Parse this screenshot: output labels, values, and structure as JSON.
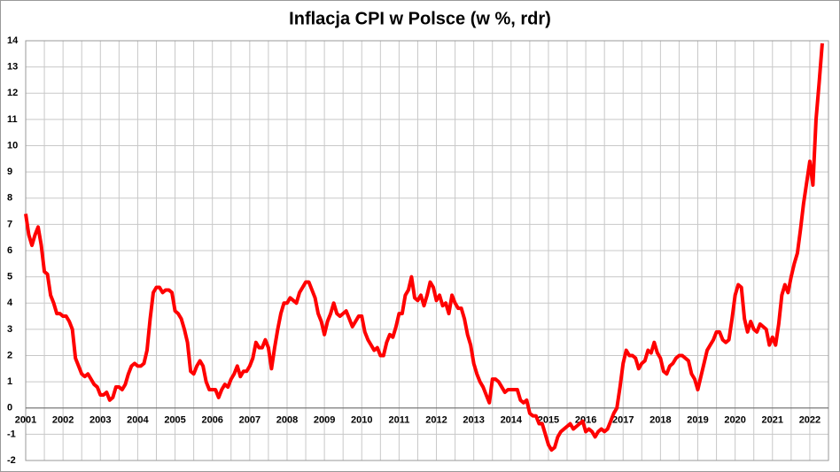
{
  "chart_data": {
    "type": "line",
    "title": "Inflacja CPI w Polsce (w %, rdr)",
    "x": [
      2001,
      2001.083,
      2001.167,
      2001.25,
      2001.333,
      2001.417,
      2001.5,
      2001.583,
      2001.667,
      2001.75,
      2001.833,
      2001.917,
      2002,
      2002.083,
      2002.167,
      2002.25,
      2002.333,
      2002.417,
      2002.5,
      2002.583,
      2002.667,
      2002.75,
      2002.833,
      2002.917,
      2003,
      2003.083,
      2003.167,
      2003.25,
      2003.333,
      2003.417,
      2003.5,
      2003.583,
      2003.667,
      2003.75,
      2003.833,
      2003.917,
      2004,
      2004.083,
      2004.167,
      2004.25,
      2004.333,
      2004.417,
      2004.5,
      2004.583,
      2004.667,
      2004.75,
      2004.833,
      2004.917,
      2005,
      2005.083,
      2005.167,
      2005.25,
      2005.333,
      2005.417,
      2005.5,
      2005.583,
      2005.667,
      2005.75,
      2005.833,
      2005.917,
      2006,
      2006.083,
      2006.167,
      2006.25,
      2006.333,
      2006.417,
      2006.5,
      2006.583,
      2006.667,
      2006.75,
      2006.833,
      2006.917,
      2007,
      2007.083,
      2007.167,
      2007.25,
      2007.333,
      2007.417,
      2007.5,
      2007.583,
      2007.667,
      2007.75,
      2007.833,
      2007.917,
      2008,
      2008.083,
      2008.167,
      2008.25,
      2008.333,
      2008.417,
      2008.5,
      2008.583,
      2008.667,
      2008.75,
      2008.833,
      2008.917,
      2009,
      2009.083,
      2009.167,
      2009.25,
      2009.333,
      2009.417,
      2009.5,
      2009.583,
      2009.667,
      2009.75,
      2009.833,
      2009.917,
      2010,
      2010.083,
      2010.167,
      2010.25,
      2010.333,
      2010.417,
      2010.5,
      2010.583,
      2010.667,
      2010.75,
      2010.833,
      2010.917,
      2011,
      2011.083,
      2011.167,
      2011.25,
      2011.333,
      2011.417,
      2011.5,
      2011.583,
      2011.667,
      2011.75,
      2011.833,
      2011.917,
      2012,
      2012.083,
      2012.167,
      2012.25,
      2012.333,
      2012.417,
      2012.5,
      2012.583,
      2012.667,
      2012.75,
      2012.833,
      2012.917,
      2013,
      2013.083,
      2013.167,
      2013.25,
      2013.333,
      2013.417,
      2013.5,
      2013.583,
      2013.667,
      2013.75,
      2013.833,
      2013.917,
      2014,
      2014.083,
      2014.167,
      2014.25,
      2014.333,
      2014.417,
      2014.5,
      2014.583,
      2014.667,
      2014.75,
      2014.833,
      2014.917,
      2015,
      2015.083,
      2015.167,
      2015.25,
      2015.333,
      2015.417,
      2015.5,
      2015.583,
      2015.667,
      2015.75,
      2015.833,
      2015.917,
      2016,
      2016.083,
      2016.167,
      2016.25,
      2016.333,
      2016.417,
      2016.5,
      2016.583,
      2016.667,
      2016.75,
      2016.833,
      2016.917,
      2017,
      2017.083,
      2017.167,
      2017.25,
      2017.333,
      2017.417,
      2017.5,
      2017.583,
      2017.667,
      2017.75,
      2017.833,
      2017.917,
      2018,
      2018.083,
      2018.167,
      2018.25,
      2018.333,
      2018.417,
      2018.5,
      2018.583,
      2018.667,
      2018.75,
      2018.833,
      2018.917,
      2019,
      2019.083,
      2019.167,
      2019.25,
      2019.333,
      2019.417,
      2019.5,
      2019.583,
      2019.667,
      2019.75,
      2019.833,
      2019.917,
      2020,
      2020.083,
      2020.167,
      2020.25,
      2020.333,
      2020.417,
      2020.5,
      2020.583,
      2020.667,
      2020.75,
      2020.833,
      2020.917,
      2021,
      2021.083,
      2021.167,
      2021.25,
      2021.333,
      2021.417,
      2021.5,
      2021.583,
      2021.667,
      2021.75,
      2021.833,
      2021.917,
      2022,
      2022.083,
      2022.167,
      2022.25,
      2022.333
    ],
    "series": [
      {
        "color": "#ff0000",
        "values": [
          7.4,
          6.6,
          6.2,
          6.6,
          6.9,
          6.2,
          5.2,
          5.1,
          4.3,
          4.0,
          3.6,
          3.6,
          3.5,
          3.5,
          3.3,
          3.0,
          1.9,
          1.6,
          1.3,
          1.2,
          1.3,
          1.1,
          0.9,
          0.8,
          0.5,
          0.5,
          0.6,
          0.3,
          0.4,
          0.8,
          0.8,
          0.7,
          0.9,
          1.3,
          1.6,
          1.7,
          1.6,
          1.6,
          1.7,
          2.2,
          3.4,
          4.4,
          4.6,
          4.6,
          4.4,
          4.5,
          4.5,
          4.4,
          3.7,
          3.6,
          3.4,
          3.0,
          2.5,
          1.4,
          1.3,
          1.6,
          1.8,
          1.6,
          1.0,
          0.7,
          0.7,
          0.7,
          0.4,
          0.7,
          0.9,
          0.8,
          1.1,
          1.3,
          1.6,
          1.2,
          1.4,
          1.4,
          1.6,
          1.9,
          2.5,
          2.3,
          2.3,
          2.6,
          2.3,
          1.5,
          2.3,
          3.0,
          3.6,
          4.0,
          4.0,
          4.2,
          4.1,
          4.0,
          4.4,
          4.6,
          4.8,
          4.8,
          4.5,
          4.2,
          3.6,
          3.3,
          2.8,
          3.3,
          3.6,
          4.0,
          3.6,
          3.5,
          3.6,
          3.7,
          3.4,
          3.1,
          3.3,
          3.5,
          3.5,
          2.9,
          2.6,
          2.4,
          2.2,
          2.3,
          2.0,
          2.0,
          2.5,
          2.8,
          2.7,
          3.1,
          3.6,
          3.6,
          4.3,
          4.5,
          5.0,
          4.2,
          4.1,
          4.3,
          3.9,
          4.3,
          4.8,
          4.6,
          4.1,
          4.3,
          3.9,
          4.0,
          3.6,
          4.3,
          4.0,
          3.8,
          3.8,
          3.4,
          2.8,
          2.4,
          1.7,
          1.3,
          1.0,
          0.8,
          0.5,
          0.2,
          1.1,
          1.1,
          1.0,
          0.8,
          0.6,
          0.7,
          0.7,
          0.7,
          0.7,
          0.3,
          0.2,
          0.3,
          -0.2,
          -0.3,
          -0.3,
          -0.6,
          -0.6,
          -1.0,
          -1.4,
          -1.6,
          -1.5,
          -1.1,
          -0.9,
          -0.8,
          -0.7,
          -0.6,
          -0.8,
          -0.7,
          -0.6,
          -0.5,
          -0.9,
          -0.8,
          -0.9,
          -1.1,
          -0.9,
          -0.8,
          -0.9,
          -0.8,
          -0.5,
          -0.2,
          0.0,
          0.8,
          1.7,
          2.2,
          2.0,
          2.0,
          1.9,
          1.5,
          1.7,
          1.8,
          2.2,
          2.1,
          2.5,
          2.1,
          1.9,
          1.4,
          1.3,
          1.6,
          1.7,
          1.9,
          2.0,
          2.0,
          1.9,
          1.8,
          1.3,
          1.1,
          0.7,
          1.2,
          1.7,
          2.2,
          2.4,
          2.6,
          2.9,
          2.9,
          2.6,
          2.5,
          2.6,
          3.4,
          4.3,
          4.7,
          4.6,
          3.4,
          2.9,
          3.3,
          3.0,
          2.9,
          3.2,
          3.1,
          3.0,
          2.4,
          2.7,
          2.4,
          3.2,
          4.3,
          4.7,
          4.4,
          5.0,
          5.5,
          5.9,
          6.8,
          7.8,
          8.6,
          9.4,
          8.5,
          11.0,
          12.4,
          13.9
        ]
      }
    ],
    "xlim": [
      2001,
      2022.5
    ],
    "xticks": [
      2001,
      2002,
      2003,
      2004,
      2005,
      2006,
      2007,
      2008,
      2009,
      2010,
      2011,
      2012,
      2013,
      2014,
      2015,
      2016,
      2017,
      2018,
      2019,
      2020,
      2021,
      2022
    ],
    "ylim": [
      -2,
      14
    ],
    "yticks": [
      -2,
      -1,
      0,
      1,
      2,
      3,
      4,
      5,
      6,
      7,
      8,
      9,
      10,
      11,
      12,
      13,
      14
    ],
    "grid": true
  }
}
